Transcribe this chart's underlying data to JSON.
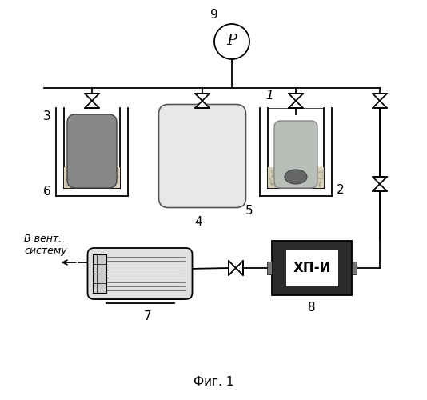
{
  "title": "Фиг. 1",
  "bg_color": "#ffffff",
  "line_color": "#000000",
  "label_9": "9",
  "label_1": "1",
  "label_2": "2",
  "label_3": "3",
  "label_4": "4",
  "label_5": "5",
  "label_6": "6",
  "label_7": "7",
  "label_8": "8",
  "label_P": "P",
  "label_XPI": "ХП-И",
  "label_vent": "В вент.\nсистему",
  "fill_color": "#d8d0b8",
  "oval_dark": "#888888",
  "oval_light": "#b8bfb8",
  "mid_vessel_fill": "#e8e8e8",
  "xpi_dark": "#2a2a2a",
  "xpi_inner": "#f0f0f0",
  "dev7_fill": "#e0e0e0"
}
